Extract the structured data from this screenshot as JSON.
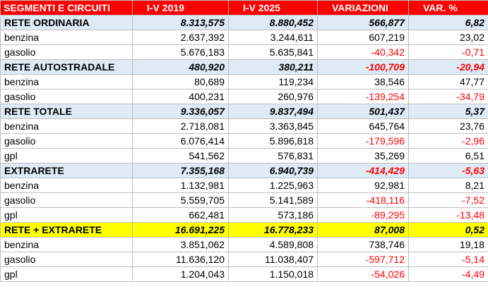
{
  "header": [
    "SEGMENTI E CIRCUITI",
    "I-V 2019",
    "I-V 2025",
    "VARIAZIONI",
    "VAR. %"
  ],
  "rows": [
    {
      "type": "section",
      "cells": [
        "RETE ORDINARIA",
        "8.313,575",
        "8.880,452",
        "566,877",
        "6,82"
      ],
      "neg": [
        false,
        false
      ]
    },
    {
      "type": "item",
      "cells": [
        "benzina",
        "2.637,392",
        "3.244,611",
        "607,219",
        "23,02"
      ],
      "neg": [
        false,
        false
      ]
    },
    {
      "type": "item",
      "cells": [
        "gasolio",
        "5.676,183",
        "5.635,841",
        "-40,342",
        "-0,71"
      ],
      "neg": [
        true,
        true
      ]
    },
    {
      "type": "section",
      "cells": [
        "RETE AUTOSTRADALE",
        "480,920",
        "380,211",
        "-100,709",
        "-20,94"
      ],
      "neg": [
        true,
        true
      ]
    },
    {
      "type": "item",
      "cells": [
        "benzina",
        "80,689",
        "119,234",
        "38,546",
        "47,77"
      ],
      "neg": [
        false,
        false
      ]
    },
    {
      "type": "item",
      "cells": [
        "gasolio",
        "400,231",
        "260,976",
        "-139,254",
        "-34,79"
      ],
      "neg": [
        true,
        true
      ]
    },
    {
      "type": "section",
      "cells": [
        "RETE TOTALE",
        "9.336,057",
        "9.837,494",
        "501,437",
        "5,37"
      ],
      "neg": [
        false,
        false
      ]
    },
    {
      "type": "item",
      "cells": [
        "benzina",
        "2.718,081",
        "3.363,845",
        "645,764",
        "23,76"
      ],
      "neg": [
        false,
        false
      ]
    },
    {
      "type": "item",
      "cells": [
        "gasolio",
        "6.076,414",
        "5.896,818",
        "-179,596",
        "-2,96"
      ],
      "neg": [
        true,
        true
      ]
    },
    {
      "type": "item",
      "cells": [
        "gpl",
        "541,562",
        "576,831",
        "35,269",
        "6,51"
      ],
      "neg": [
        false,
        false
      ]
    },
    {
      "type": "section",
      "cells": [
        "EXTRARETE",
        "7.355,168",
        "6.940,739",
        "-414,429",
        "-5,63"
      ],
      "neg": [
        true,
        true
      ]
    },
    {
      "type": "item",
      "cells": [
        "benzina",
        "1.132,981",
        "1.225,963",
        "92,981",
        "8,21"
      ],
      "neg": [
        false,
        false
      ]
    },
    {
      "type": "item",
      "cells": [
        "gasolio",
        "5.559,705",
        "5.141,589",
        "-418,116",
        "-7,52"
      ],
      "neg": [
        true,
        true
      ]
    },
    {
      "type": "item",
      "cells": [
        "gpl",
        "662,481",
        "573,186",
        "-89,295",
        "-13,48"
      ],
      "neg": [
        true,
        true
      ]
    },
    {
      "type": "grand",
      "cells": [
        "RETE + EXTRARETE",
        "16.691,225",
        "16.778,233",
        "87,008",
        "0,52"
      ],
      "neg": [
        false,
        false
      ]
    },
    {
      "type": "item",
      "cells": [
        "benzina",
        "3.851,062",
        "4.589,808",
        "738,746",
        "19,18"
      ],
      "neg": [
        false,
        false
      ]
    },
    {
      "type": "item",
      "cells": [
        "gasolio",
        "11.636,120",
        "11.038,407",
        "-597,712",
        "-5,14"
      ],
      "neg": [
        true,
        true
      ]
    },
    {
      "type": "item",
      "cells": [
        "gpl",
        "1.204,043",
        "1.150,018",
        "-54,026",
        "-4,49"
      ],
      "neg": [
        true,
        true
      ]
    }
  ]
}
